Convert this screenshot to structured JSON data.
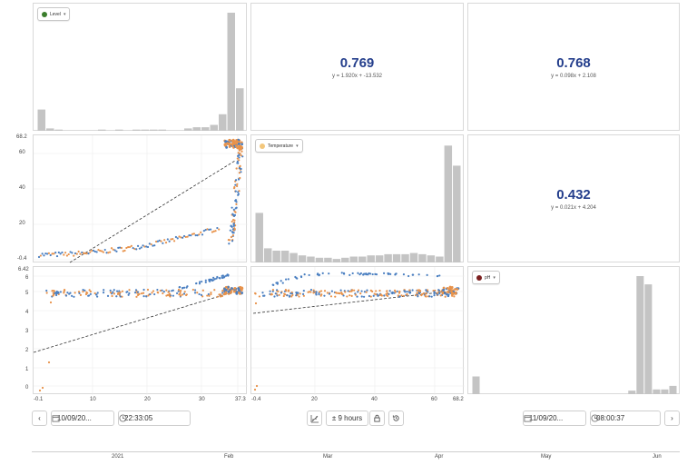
{
  "matrix": {
    "level_pill": {
      "label": "Level",
      "color": "#3a7d2c"
    },
    "temperature_pill": {
      "label": "Temperature",
      "color": "#f3c77c"
    },
    "ph_pill": {
      "label": "pH",
      "color": "#7b1f1f"
    },
    "corr_level_temperature": {
      "value": "0.769",
      "equation": "y = 1.920x + -13.532"
    },
    "corr_level_ph": {
      "value": "0.768",
      "equation": "y = 0.098x + 2.108"
    },
    "corr_temperature_ph": {
      "value": "0.432",
      "equation": "y = 0.021x + 4.204"
    },
    "temp_axis_ticks": [
      "68.2",
      "60",
      "40",
      "20",
      "-0.4"
    ],
    "ph_axis_ticks": [
      "6.42",
      "6",
      "5",
      "4",
      "3",
      "2",
      "1",
      "0"
    ],
    "level_x_ticks": [
      "-0.1",
      "10",
      "20",
      "30",
      "37.3"
    ],
    "temp_x_ticks": [
      "-0.4",
      "20",
      "40",
      "60",
      "68.2"
    ],
    "series_colors": {
      "primary": "#4a7fc1",
      "secondary": "#e8924a",
      "trend": "#333333"
    }
  },
  "histograms": {
    "level": [
      0.18,
      0.02,
      0.01,
      0,
      0,
      0,
      0,
      0.01,
      0,
      0.01,
      0,
      0.01,
      0.01,
      0.01,
      0.01,
      0,
      0,
      0.02,
      0.03,
      0.03,
      0.05,
      0.14,
      1.0,
      0.36
    ],
    "temperature": [
      0.42,
      0.12,
      0.1,
      0.1,
      0.08,
      0.06,
      0.05,
      0.04,
      0.04,
      0.03,
      0.04,
      0.05,
      0.05,
      0.06,
      0.06,
      0.07,
      0.07,
      0.07,
      0.08,
      0.07,
      0.06,
      0.05,
      0.99,
      0.82
    ],
    "ph": [
      0.15,
      0,
      0,
      0,
      0,
      0,
      0,
      0,
      0,
      0,
      0,
      0,
      0,
      0,
      0,
      0,
      0,
      0,
      0,
      0.03,
      1.0,
      0.93,
      0.04,
      0.04,
      0.07
    ]
  },
  "controls": {
    "prev_label": "‹",
    "next_label": "›",
    "start_date": "10/09/20...",
    "start_time": "22:33:05",
    "end_date": "11/09/20...",
    "end_time": "08:00:37",
    "range_label": "± 9 hours"
  },
  "timeline": {
    "labels": [
      "2021",
      "Feb",
      "Mar",
      "Apr",
      "May",
      "Jun"
    ]
  }
}
